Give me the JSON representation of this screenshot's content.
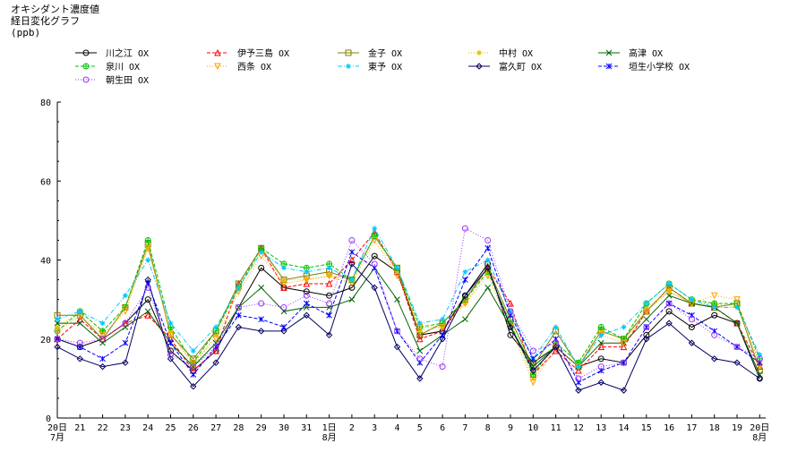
{
  "header": {
    "title_line1": "オキシダント濃度値",
    "title_line2": "経日変化グラフ",
    "unit": "(ppb)"
  },
  "chart_data": {
    "type": "line",
    "title": "オキシダント濃度値 経日変化グラフ",
    "ylabel": "(ppb)",
    "xlabel": "",
    "ylim": [
      0,
      80
    ],
    "yticks": [
      0,
      20,
      40,
      60,
      80
    ],
    "grid": false,
    "legend_position": "top",
    "categories": [
      "20",
      "21",
      "22",
      "23",
      "24",
      "25",
      "26",
      "27",
      "28",
      "29",
      "30",
      "31",
      "1",
      "2",
      "3",
      "4",
      "5",
      "6",
      "7",
      "8",
      "9",
      "10",
      "11",
      "12",
      "13",
      "14",
      "15",
      "16",
      "17",
      "18",
      "19",
      "20"
    ],
    "month_labels": [
      {
        "index": 0,
        "label": "7月"
      },
      {
        "index": 12,
        "label": "8月"
      },
      {
        "index": 31,
        "label": "8月"
      }
    ],
    "series": [
      {
        "name": "川之江 OX",
        "color": "#000000",
        "marker": "circle",
        "dash": "solid",
        "values": [
          20,
          18,
          20,
          24,
          30,
          17,
          12,
          17,
          28,
          38,
          33,
          32,
          31,
          33,
          41,
          37,
          21,
          22,
          31,
          39,
          21,
          14,
          18,
          13,
          15,
          14,
          21,
          27,
          23,
          26,
          24,
          10
        ]
      },
      {
        "name": "伊予三島 OX",
        "color": "#ff0000",
        "marker": "triangle",
        "dash": "dash",
        "values": [
          20,
          25,
          20,
          24,
          26,
          20,
          12,
          17,
          34,
          43,
          33,
          34,
          34,
          40,
          47,
          37,
          20,
          22,
          30,
          38,
          29,
          11,
          17,
          12,
          18,
          18,
          27,
          33,
          29,
          28,
          24,
          13
        ]
      },
      {
        "name": "金子 OX",
        "color": "#808000",
        "marker": "square",
        "dash": "solid",
        "values": [
          26,
          26,
          20,
          28,
          44,
          21,
          15,
          22,
          34,
          43,
          35,
          36,
          37,
          35,
          46,
          38,
          21,
          24,
          30,
          38,
          25,
          13,
          22,
          13,
          22,
          20,
          27,
          33,
          29,
          28,
          29,
          12
        ]
      },
      {
        "name": "中村 OX",
        "color": "#e0c000",
        "marker": "star",
        "dash": "dot",
        "values": [
          23,
          27,
          22,
          28,
          43,
          22,
          13,
          21,
          33,
          42,
          35,
          35,
          36,
          35,
          46,
          37,
          22,
          23,
          29,
          37,
          24,
          10,
          19,
          14,
          22,
          20,
          28,
          32,
          29,
          29,
          28,
          14
        ]
      },
      {
        "name": "高津 OX",
        "color": "#006400",
        "marker": "x",
        "dash": "solid",
        "values": [
          24,
          24,
          19,
          23,
          27,
          19,
          13,
          19,
          28,
          33,
          27,
          28,
          28,
          30,
          38,
          30,
          17,
          21,
          25,
          33,
          23,
          13,
          18,
          13,
          19,
          19,
          25,
          31,
          29,
          28,
          24,
          11
        ]
      },
      {
        "name": "泉川 OX",
        "color": "#00c000",
        "marker": "circlecross",
        "dash": "dash",
        "values": [
          22,
          27,
          22,
          28,
          45,
          23,
          14,
          22,
          33,
          43,
          39,
          38,
          39,
          35,
          46,
          38,
          23,
          24,
          30,
          37,
          24,
          11,
          19,
          14,
          23,
          20,
          29,
          34,
          30,
          29,
          29,
          15
        ]
      },
      {
        "name": "西条 OX",
        "color": "#ffa000",
        "marker": "invtriangle",
        "dash": "dot",
        "values": [
          22,
          26,
          21,
          27,
          43,
          21,
          14,
          20,
          32,
          41,
          34,
          35,
          36,
          34,
          45,
          36,
          23,
          23,
          29,
          36,
          23,
          9,
          18,
          13,
          21,
          19,
          27,
          32,
          29,
          31,
          30,
          13
        ]
      },
      {
        "name": "東予 OX",
        "color": "#00c8ff",
        "marker": "star",
        "dash": "dashdot",
        "values": [
          25,
          27,
          24,
          31,
          40,
          24,
          17,
          23,
          33,
          42,
          38,
          37,
          38,
          35,
          48,
          38,
          24,
          25,
          37,
          40,
          27,
          15,
          23,
          13,
          21,
          23,
          29,
          34,
          30,
          28,
          28,
          16
        ]
      },
      {
        "name": "富久町 OX",
        "color": "#000060",
        "marker": "diamond",
        "dash": "solid",
        "values": [
          18,
          15,
          13,
          14,
          35,
          15,
          8,
          14,
          23,
          22,
          22,
          26,
          21,
          39,
          33,
          18,
          10,
          20,
          31,
          38,
          23,
          12,
          18,
          7,
          9,
          7,
          20,
          24,
          19,
          15,
          14,
          10
        ]
      },
      {
        "name": "垣生小学校 OX",
        "color": "#0000ff",
        "marker": "asterisk",
        "dash": "dash",
        "values": [
          20,
          18,
          15,
          19,
          34,
          19,
          11,
          18,
          26,
          25,
          23,
          29,
          26,
          42,
          38,
          22,
          14,
          21,
          35,
          43,
          26,
          15,
          20,
          9,
          12,
          14,
          23,
          29,
          26,
          22,
          18,
          14
        ]
      },
      {
        "name": "朝生田 OX",
        "color": "#9933ff",
        "marker": "circle",
        "dash": "dot",
        "values": [
          20,
          19,
          20,
          24,
          33,
          16,
          13,
          18,
          28,
          29,
          28,
          31,
          29,
          45,
          39,
          22,
          15,
          13,
          48,
          45,
          27,
          17,
          19,
          10,
          13,
          14,
          23,
          29,
          25,
          21,
          18,
          15
        ]
      }
    ]
  }
}
